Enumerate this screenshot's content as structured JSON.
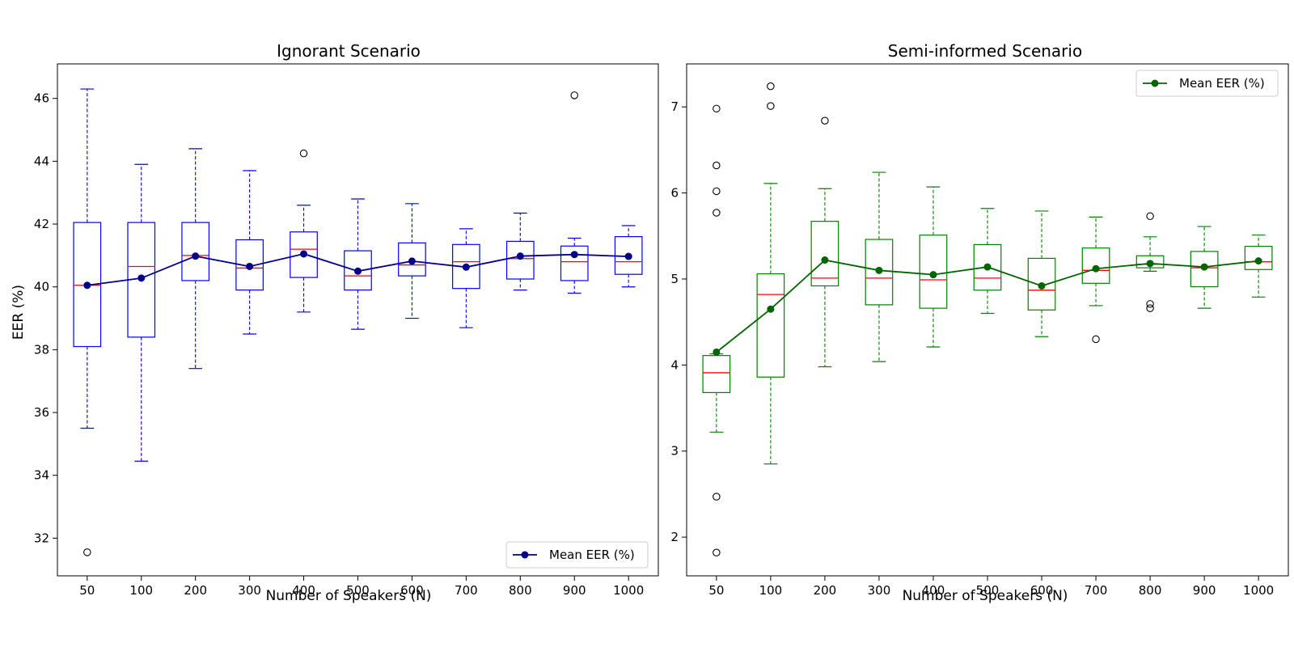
{
  "chart_data": [
    {
      "type": "box",
      "title": "Ignorant Scenario",
      "xlabel": "Number of Speakers (N)",
      "ylabel": "EER (%)",
      "ylim": [
        30.8,
        47.1
      ],
      "yticks": [
        32,
        34,
        36,
        38,
        40,
        42,
        44,
        46
      ],
      "categories": [
        "50",
        "100",
        "200",
        "300",
        "400",
        "500",
        "600",
        "700",
        "800",
        "900",
        "1000"
      ],
      "box_color": "#0000ff",
      "median_color": "#ff0000",
      "mean_color": "#00008b",
      "legend": {
        "label": "Mean EER (%)",
        "position": "lower-right"
      },
      "boxes": [
        {
          "whislo": 35.5,
          "q1": 38.1,
          "med": 40.05,
          "q3": 42.05,
          "whishi": 46.3,
          "fliers": [
            31.55
          ]
        },
        {
          "whislo": 34.45,
          "q1": 38.4,
          "med": 40.65,
          "q3": 42.05,
          "whishi": 43.9,
          "fliers": []
        },
        {
          "whislo": 37.4,
          "q1": 40.2,
          "med": 41.0,
          "q3": 42.05,
          "whishi": 44.4,
          "fliers": []
        },
        {
          "whislo": 38.5,
          "q1": 39.9,
          "med": 40.6,
          "q3": 41.5,
          "whishi": 43.7,
          "fliers": []
        },
        {
          "whislo": 39.2,
          "q1": 40.3,
          "med": 41.2,
          "q3": 41.75,
          "whishi": 42.6,
          "fliers": [
            44.25
          ]
        },
        {
          "whislo": 38.65,
          "q1": 39.9,
          "med": 40.35,
          "q3": 41.15,
          "whishi": 42.8,
          "fliers": []
        },
        {
          "whislo": 39.0,
          "q1": 40.35,
          "med": 40.7,
          "q3": 41.4,
          "whishi": 42.65,
          "fliers": []
        },
        {
          "whislo": 38.7,
          "q1": 39.95,
          "med": 40.8,
          "q3": 41.35,
          "whishi": 41.85,
          "fliers": []
        },
        {
          "whislo": 39.9,
          "q1": 40.25,
          "med": 40.9,
          "q3": 41.45,
          "whishi": 42.35,
          "fliers": []
        },
        {
          "whislo": 39.8,
          "q1": 40.2,
          "med": 40.8,
          "q3": 41.3,
          "whishi": 41.55,
          "fliers": [
            46.1
          ]
        },
        {
          "whislo": 40.0,
          "q1": 40.4,
          "med": 40.8,
          "q3": 41.6,
          "whishi": 41.95,
          "fliers": []
        }
      ],
      "series": [
        {
          "name": "Mean EER (%)",
          "values": [
            40.05,
            40.28,
            40.98,
            40.65,
            41.05,
            40.5,
            40.82,
            40.63,
            40.98,
            41.03,
            40.97
          ]
        }
      ]
    },
    {
      "type": "box",
      "title": "Semi-informed Scenario",
      "xlabel": "Number of Speakers (N)",
      "ylabel": "",
      "ylim": [
        1.55,
        7.5
      ],
      "yticks": [
        2,
        3,
        4,
        5,
        6,
        7
      ],
      "categories": [
        "50",
        "100",
        "200",
        "300",
        "400",
        "500",
        "600",
        "700",
        "800",
        "900",
        "1000"
      ],
      "box_color": "#008000",
      "median_color": "#ff0000",
      "mean_color": "#006400",
      "legend": {
        "label": "Mean EER (%)",
        "position": "upper-right"
      },
      "boxes": [
        {
          "whislo": 3.22,
          "q1": 3.68,
          "med": 3.91,
          "q3": 4.11,
          "whishi": 4.13,
          "fliers": [
            1.82,
            2.47,
            5.77,
            6.02,
            6.32,
            6.98
          ]
        },
        {
          "whislo": 2.85,
          "q1": 3.86,
          "med": 4.82,
          "q3": 5.06,
          "whishi": 6.11,
          "fliers": [
            7.01,
            7.24
          ]
        },
        {
          "whislo": 3.98,
          "q1": 4.92,
          "med": 5.01,
          "q3": 5.67,
          "whishi": 6.05,
          "fliers": [
            6.84
          ]
        },
        {
          "whislo": 4.04,
          "q1": 4.7,
          "med": 5.01,
          "q3": 5.46,
          "whishi": 6.24,
          "fliers": []
        },
        {
          "whislo": 4.21,
          "q1": 4.66,
          "med": 4.99,
          "q3": 5.51,
          "whishi": 6.07,
          "fliers": []
        },
        {
          "whislo": 4.6,
          "q1": 4.87,
          "med": 5.01,
          "q3": 5.4,
          "whishi": 5.82,
          "fliers": []
        },
        {
          "whislo": 4.33,
          "q1": 4.64,
          "med": 4.87,
          "q3": 5.24,
          "whishi": 5.79,
          "fliers": []
        },
        {
          "whislo": 4.69,
          "q1": 4.95,
          "med": 5.1,
          "q3": 5.36,
          "whishi": 5.72,
          "fliers": [
            4.3
          ]
        },
        {
          "whislo": 5.09,
          "q1": 5.13,
          "med": 5.17,
          "q3": 5.27,
          "whishi": 5.49,
          "fliers": [
            4.66,
            4.71,
            5.73
          ]
        },
        {
          "whislo": 4.66,
          "q1": 4.91,
          "med": 5.13,
          "q3": 5.32,
          "whishi": 5.61,
          "fliers": []
        },
        {
          "whislo": 4.79,
          "q1": 5.11,
          "med": 5.2,
          "q3": 5.38,
          "whishi": 5.51,
          "fliers": []
        }
      ],
      "series": [
        {
          "name": "Mean EER (%)",
          "values": [
            4.15,
            4.65,
            5.22,
            5.1,
            5.05,
            5.14,
            4.92,
            5.12,
            5.18,
            5.14,
            5.21
          ]
        }
      ]
    }
  ]
}
